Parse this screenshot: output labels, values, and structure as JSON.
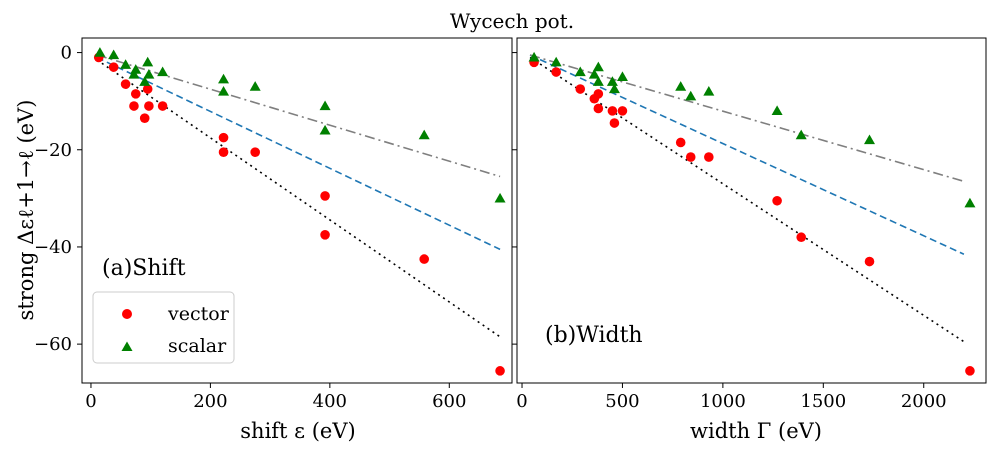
{
  "title": "Wycech pot.",
  "ylabel": "strong Δεℓ+1→ℓ (eV)",
  "legend": {
    "placement": "lower-left",
    "entries": [
      {
        "label": "vector",
        "color": "#ff0000",
        "marker": "circle"
      },
      {
        "label": "scalar",
        "color": "#008000",
        "marker": "triangle"
      }
    ]
  },
  "chart_data": [
    {
      "type": "scatter",
      "panel_label": "(a)Shift",
      "xlabel": "shift ε (eV)",
      "ylabel": "strong Δεℓ+1→ℓ (eV)",
      "xlim": [
        -15,
        705
      ],
      "ylim": [
        -68,
        3
      ],
      "xticks": [
        0,
        200,
        400,
        600
      ],
      "yticks": [
        0,
        -20,
        -40,
        -60
      ],
      "series": [
        {
          "name": "vector",
          "color": "#ff0000",
          "marker": "circle",
          "points": [
            [
              13,
              -1
            ],
            [
              38,
              -3
            ],
            [
              58,
              -6.5
            ],
            [
              72,
              -11
            ],
            [
              75,
              -8.5
            ],
            [
              90,
              -13.5
            ],
            [
              95,
              -7.5
            ],
            [
              97,
              -11
            ],
            [
              120,
              -11
            ],
            [
              222,
              -17.5
            ],
            [
              222,
              -20.5
            ],
            [
              275,
              -20.5
            ],
            [
              392,
              -29.5
            ],
            [
              392,
              -37.5
            ],
            [
              558,
              -42.5
            ],
            [
              685,
              -65.5
            ]
          ]
        },
        {
          "name": "scalar",
          "color": "#008000",
          "marker": "triangle",
          "points": [
            [
              15,
              0
            ],
            [
              38,
              -0.5
            ],
            [
              58,
              -2.5
            ],
            [
              72,
              -4.5
            ],
            [
              75,
              -3.5
            ],
            [
              90,
              -6
            ],
            [
              95,
              -2
            ],
            [
              97,
              -4.5
            ],
            [
              120,
              -4
            ],
            [
              222,
              -5.5
            ],
            [
              222,
              -8
            ],
            [
              275,
              -7
            ],
            [
              392,
              -11
            ],
            [
              392,
              -16
            ],
            [
              558,
              -17
            ],
            [
              685,
              -30
            ]
          ]
        }
      ],
      "fit_lines": [
        {
          "style": "dotted",
          "color": "#000000",
          "x": [
            10,
            685
          ],
          "y": [
            -1.5,
            -58.5
          ]
        },
        {
          "style": "dashed",
          "color": "#1f77b4",
          "x": [
            10,
            685
          ],
          "y": [
            -1,
            -40.5
          ]
        },
        {
          "style": "dashdot",
          "color": "#7f7f7f",
          "x": [
            10,
            685
          ],
          "y": [
            -0.5,
            -25.5
          ]
        }
      ]
    },
    {
      "type": "scatter",
      "panel_label": "(b)Width",
      "xlabel": "width Γ (eV)",
      "xlim": [
        -25,
        2310
      ],
      "ylim": [
        -68,
        3
      ],
      "xticks": [
        0,
        500,
        1000,
        1500,
        2000
      ],
      "yticks": [
        0,
        -20,
        -40,
        -60
      ],
      "series": [
        {
          "name": "vector",
          "color": "#ff0000",
          "marker": "circle",
          "points": [
            [
              60,
              -2
            ],
            [
              170,
              -4
            ],
            [
              290,
              -7.5
            ],
            [
              360,
              -9.5
            ],
            [
              380,
              -8.5
            ],
            [
              380,
              -11.5
            ],
            [
              450,
              -12
            ],
            [
              460,
              -14.5
            ],
            [
              500,
              -12
            ],
            [
              790,
              -18.5
            ],
            [
              840,
              -21.5
            ],
            [
              930,
              -21.5
            ],
            [
              1270,
              -30.5
            ],
            [
              1390,
              -38
            ],
            [
              1730,
              -43
            ],
            [
              2230,
              -65.5
            ]
          ]
        },
        {
          "name": "scalar",
          "color": "#008000",
          "marker": "triangle",
          "points": [
            [
              60,
              -1
            ],
            [
              170,
              -2
            ],
            [
              290,
              -4
            ],
            [
              360,
              -4.5
            ],
            [
              380,
              -3
            ],
            [
              380,
              -6
            ],
            [
              450,
              -6
            ],
            [
              460,
              -7.5
            ],
            [
              500,
              -5
            ],
            [
              790,
              -7
            ],
            [
              840,
              -9
            ],
            [
              930,
              -8
            ],
            [
              1270,
              -12
            ],
            [
              1390,
              -17
            ],
            [
              1730,
              -18
            ],
            [
              2230,
              -31
            ]
          ]
        }
      ],
      "fit_lines": [
        {
          "style": "dotted",
          "color": "#000000",
          "x": [
            40,
            2200
          ],
          "y": [
            -1,
            -59.5
          ]
        },
        {
          "style": "dashed",
          "color": "#1f77b4",
          "x": [
            40,
            2200
          ],
          "y": [
            -0.5,
            -41.5
          ]
        },
        {
          "style": "dashdot",
          "color": "#7f7f7f",
          "x": [
            40,
            2200
          ],
          "y": [
            -0.5,
            -26.5
          ]
        }
      ]
    }
  ]
}
